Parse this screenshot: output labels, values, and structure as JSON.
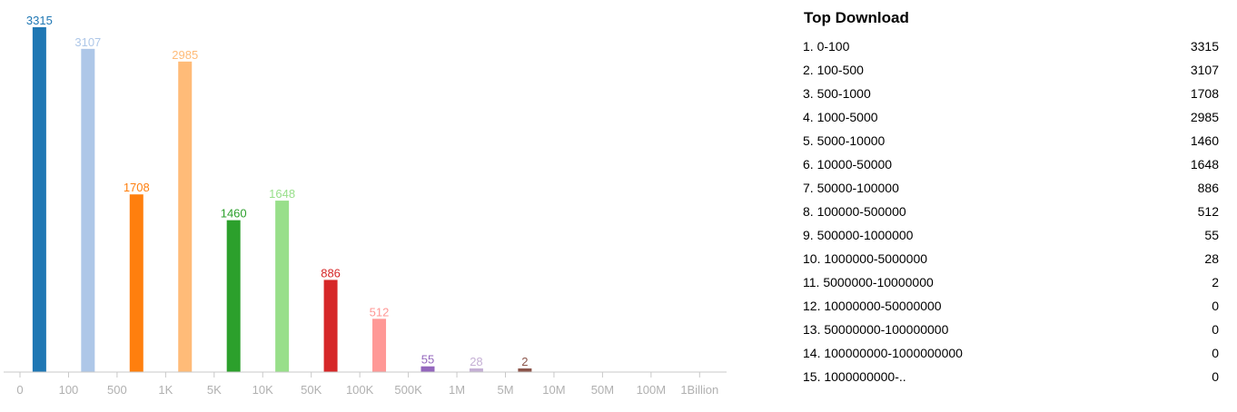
{
  "chart_data": {
    "type": "bar",
    "tick_labels": [
      "0",
      "100",
      "500",
      "1K",
      "5K",
      "10K",
      "50K",
      "100K",
      "500K",
      "1M",
      "5M",
      "10M",
      "50M",
      "100M",
      "1Billion"
    ],
    "categories": [
      "0-100",
      "100-500",
      "500-1000",
      "1000-5000",
      "5000-10000",
      "10000-50000",
      "50000-100000",
      "100000-500000",
      "500000-1000000",
      "1000000-5000000",
      "5000000-10000000",
      "10000000-50000000",
      "50000000-100000000",
      "100000000-1000000000",
      "1000000000-.."
    ],
    "values": [
      3315,
      3107,
      1708,
      2985,
      1460,
      1648,
      886,
      512,
      55,
      28,
      2,
      0,
      0,
      0,
      0
    ],
    "colors": [
      "#1f77b4",
      "#aec7e8",
      "#ff7f0e",
      "#ffbb78",
      "#2ca02c",
      "#98df8a",
      "#d62728",
      "#ff9896",
      "#9467bd",
      "#c5b0d5",
      "#8c564b",
      "#c49c94",
      "#e377c2",
      "#f7b6d2",
      "#7f7f7f"
    ],
    "ylim": [
      0,
      3315
    ],
    "grid": false
  },
  "panel": {
    "title": "Top Download",
    "rows": [
      {
        "label": "1. 0-100",
        "value": "3315"
      },
      {
        "label": "2. 100-500",
        "value": "3107"
      },
      {
        "label": "3. 500-1000",
        "value": "1708"
      },
      {
        "label": "4. 1000-5000",
        "value": "2985"
      },
      {
        "label": "5. 5000-10000",
        "value": "1460"
      },
      {
        "label": "6. 10000-50000",
        "value": "1648"
      },
      {
        "label": "7. 50000-100000",
        "value": "886"
      },
      {
        "label": "8. 100000-500000",
        "value": "512"
      },
      {
        "label": "9. 500000-1000000",
        "value": "55"
      },
      {
        "label": "10. 1000000-5000000",
        "value": "28"
      },
      {
        "label": "11. 5000000-10000000",
        "value": "2"
      },
      {
        "label": "12. 10000000-50000000",
        "value": "0"
      },
      {
        "label": "13. 50000000-100000000",
        "value": "0"
      },
      {
        "label": "14. 100000000-1000000000",
        "value": "0"
      },
      {
        "label": "15. 1000000000-..",
        "value": "0"
      }
    ]
  }
}
